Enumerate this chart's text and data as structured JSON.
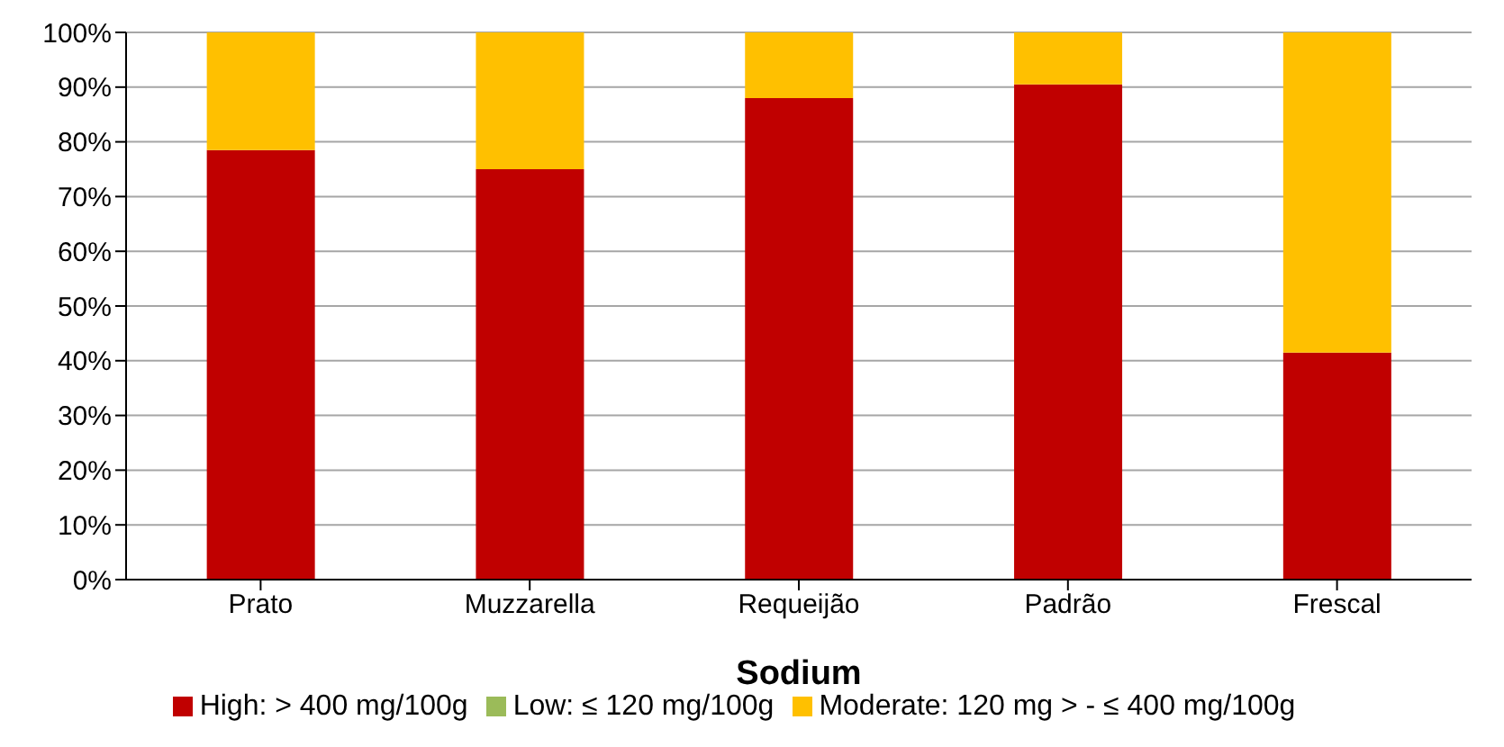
{
  "chart_data": {
    "type": "bar",
    "stacked": true,
    "xlabel": "Sodium",
    "categories": [
      "Prato",
      "Muzzarella",
      "Requeijão",
      "Padrão",
      "Frescal"
    ],
    "series": [
      {
        "name": "High: > 400 mg/100g",
        "color": "#c00000",
        "values": [
          78.5,
          75,
          88,
          90.5,
          41.5
        ]
      },
      {
        "name": "Moderate: 120 mg > - ≤ 400 mg/100g",
        "color": "#ffc000",
        "values": [
          21.5,
          25,
          12,
          9.5,
          58.5
        ]
      },
      {
        "name": "Low: ≤ 120 mg/100g",
        "color": "#9bbb59",
        "values": [
          0,
          0,
          0,
          0,
          0
        ]
      }
    ],
    "ylim": [
      0,
      100
    ],
    "yticks": [
      {
        "value": 0,
        "label": "0%"
      },
      {
        "value": 10,
        "label": "10%"
      },
      {
        "value": 20,
        "label": "20%"
      },
      {
        "value": 30,
        "label": "30%"
      },
      {
        "value": 40,
        "label": "40%"
      },
      {
        "value": 50,
        "label": "50%"
      },
      {
        "value": 60,
        "label": "60%"
      },
      {
        "value": 70,
        "label": "70%"
      },
      {
        "value": 80,
        "label": "80%"
      },
      {
        "value": 90,
        "label": "90%"
      },
      {
        "value": 100,
        "label": "100%"
      }
    ],
    "grid": "y",
    "legend": "bottom"
  }
}
